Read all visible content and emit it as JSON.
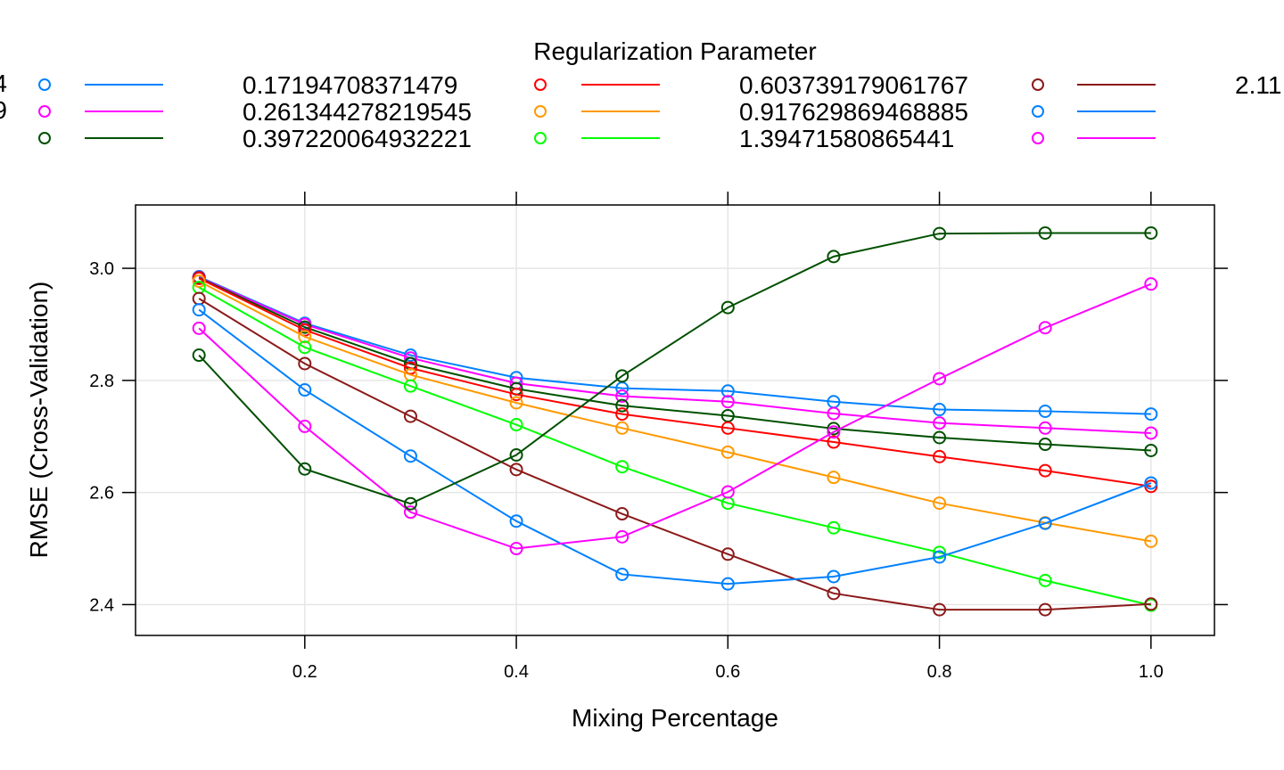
{
  "chart_data": {
    "type": "line",
    "legend_title": "Regularization Parameter",
    "xlabel": "Mixing Percentage",
    "ylabel": "RMSE (Cross-Validation)",
    "xlim": [
      0.04,
      1.06
    ],
    "ylim": [
      2.345,
      3.113
    ],
    "x": [
      0.1,
      0.2,
      0.3,
      0.4,
      0.5,
      0.6,
      0.7,
      0.8,
      0.9,
      1.0
    ],
    "x_ticks": [
      0.2,
      0.4,
      0.6,
      0.8,
      1.0
    ],
    "x_tick_labels": [
      "0.2",
      "0.4",
      "0.6",
      "0.8",
      "1.0"
    ],
    "y_ticks": [
      2.4,
      2.6,
      2.8,
      3.0
    ],
    "y_tick_labels": [
      "2.4",
      "2.6",
      "2.8",
      "3.0"
    ],
    "grid": true,
    "legend_placement": "top",
    "series": [
      {
        "name": "0.17194708371479",
        "color": "#0080ff",
        "values": [
          2.985,
          2.902,
          2.845,
          2.805,
          2.786,
          2.781,
          2.762,
          2.748,
          2.745,
          2.74
        ]
      },
      {
        "name": "0.261344278219545",
        "color": "#ff00ff",
        "values": [
          2.984,
          2.9,
          2.84,
          2.795,
          2.772,
          2.762,
          2.741,
          2.724,
          2.715,
          2.706
        ]
      },
      {
        "name": "0.397220064932221",
        "color": "#005000",
        "values": [
          2.983,
          2.895,
          2.83,
          2.785,
          2.755,
          2.737,
          2.714,
          2.698,
          2.686,
          2.675
        ]
      },
      {
        "name": "0.603739179061767",
        "color": "#ff0000",
        "values": [
          2.982,
          2.89,
          2.822,
          2.775,
          2.74,
          2.715,
          2.69,
          2.664,
          2.639,
          2.611
        ]
      },
      {
        "name": "0.917629869468885",
        "color": "#ff9900",
        "values": [
          2.977,
          2.878,
          2.81,
          2.76,
          2.715,
          2.672,
          2.627,
          2.581,
          2.546,
          2.513
        ]
      },
      {
        "name": "1.39471580865441",
        "color": "#00ff00",
        "values": [
          2.966,
          2.859,
          2.79,
          2.721,
          2.646,
          2.581,
          2.537,
          2.493,
          2.443,
          2.399
        ]
      },
      {
        "name": "2.11",
        "color": "#8b1a1a",
        "values": [
          2.946,
          2.83,
          2.736,
          2.641,
          2.562,
          2.49,
          2.42,
          2.391,
          2.391,
          2.401
        ]
      },
      {
        "name": "",
        "color": "#0080ff",
        "values": [
          2.926,
          2.783,
          2.665,
          2.549,
          2.454,
          2.437,
          2.45,
          2.485,
          2.545,
          2.617
        ]
      },
      {
        "name": "",
        "color": "#ff00ff",
        "values": [
          2.893,
          2.718,
          2.565,
          2.5,
          2.521,
          2.601,
          2.708,
          2.803,
          2.894,
          2.972
        ]
      },
      {
        "name": "",
        "color": "#005000",
        "values": [
          2.845,
          2.642,
          2.58,
          2.667,
          2.808,
          2.93,
          3.021,
          3.062,
          3.063,
          3.063
        ]
      }
    ]
  },
  "legend": {
    "title": "Regularization Parameter",
    "left_cut_labels": [
      "4",
      "9"
    ],
    "columns": [
      {
        "labels": [
          "0.17194708371479",
          "0.261344278219545",
          "0.397220064932221"
        ],
        "symbols": [
          {
            "color": "#8b1a1a"
          },
          {
            "color": "#0080ff"
          },
          {
            "color": "#ff00ff"
          }
        ]
      },
      {
        "labels": [
          "0.603739179061767",
          "0.917629869468885",
          "1.39471580865441"
        ],
        "symbols": [
          {
            "color": "#ff0000"
          },
          {
            "color": "#ff9900"
          },
          {
            "color": "#00ff00"
          }
        ]
      },
      {
        "labels": [
          "2.11",
          "",
          ""
        ],
        "symbols": [
          {
            "color": "#8b1a1a"
          },
          {
            "color": "#0080ff"
          },
          {
            "color": "#ff00ff"
          }
        ]
      }
    ],
    "first_symbols": [
      {
        "color": "#0080ff"
      },
      {
        "color": "#ff00ff"
      },
      {
        "color": "#005000"
      }
    ]
  }
}
